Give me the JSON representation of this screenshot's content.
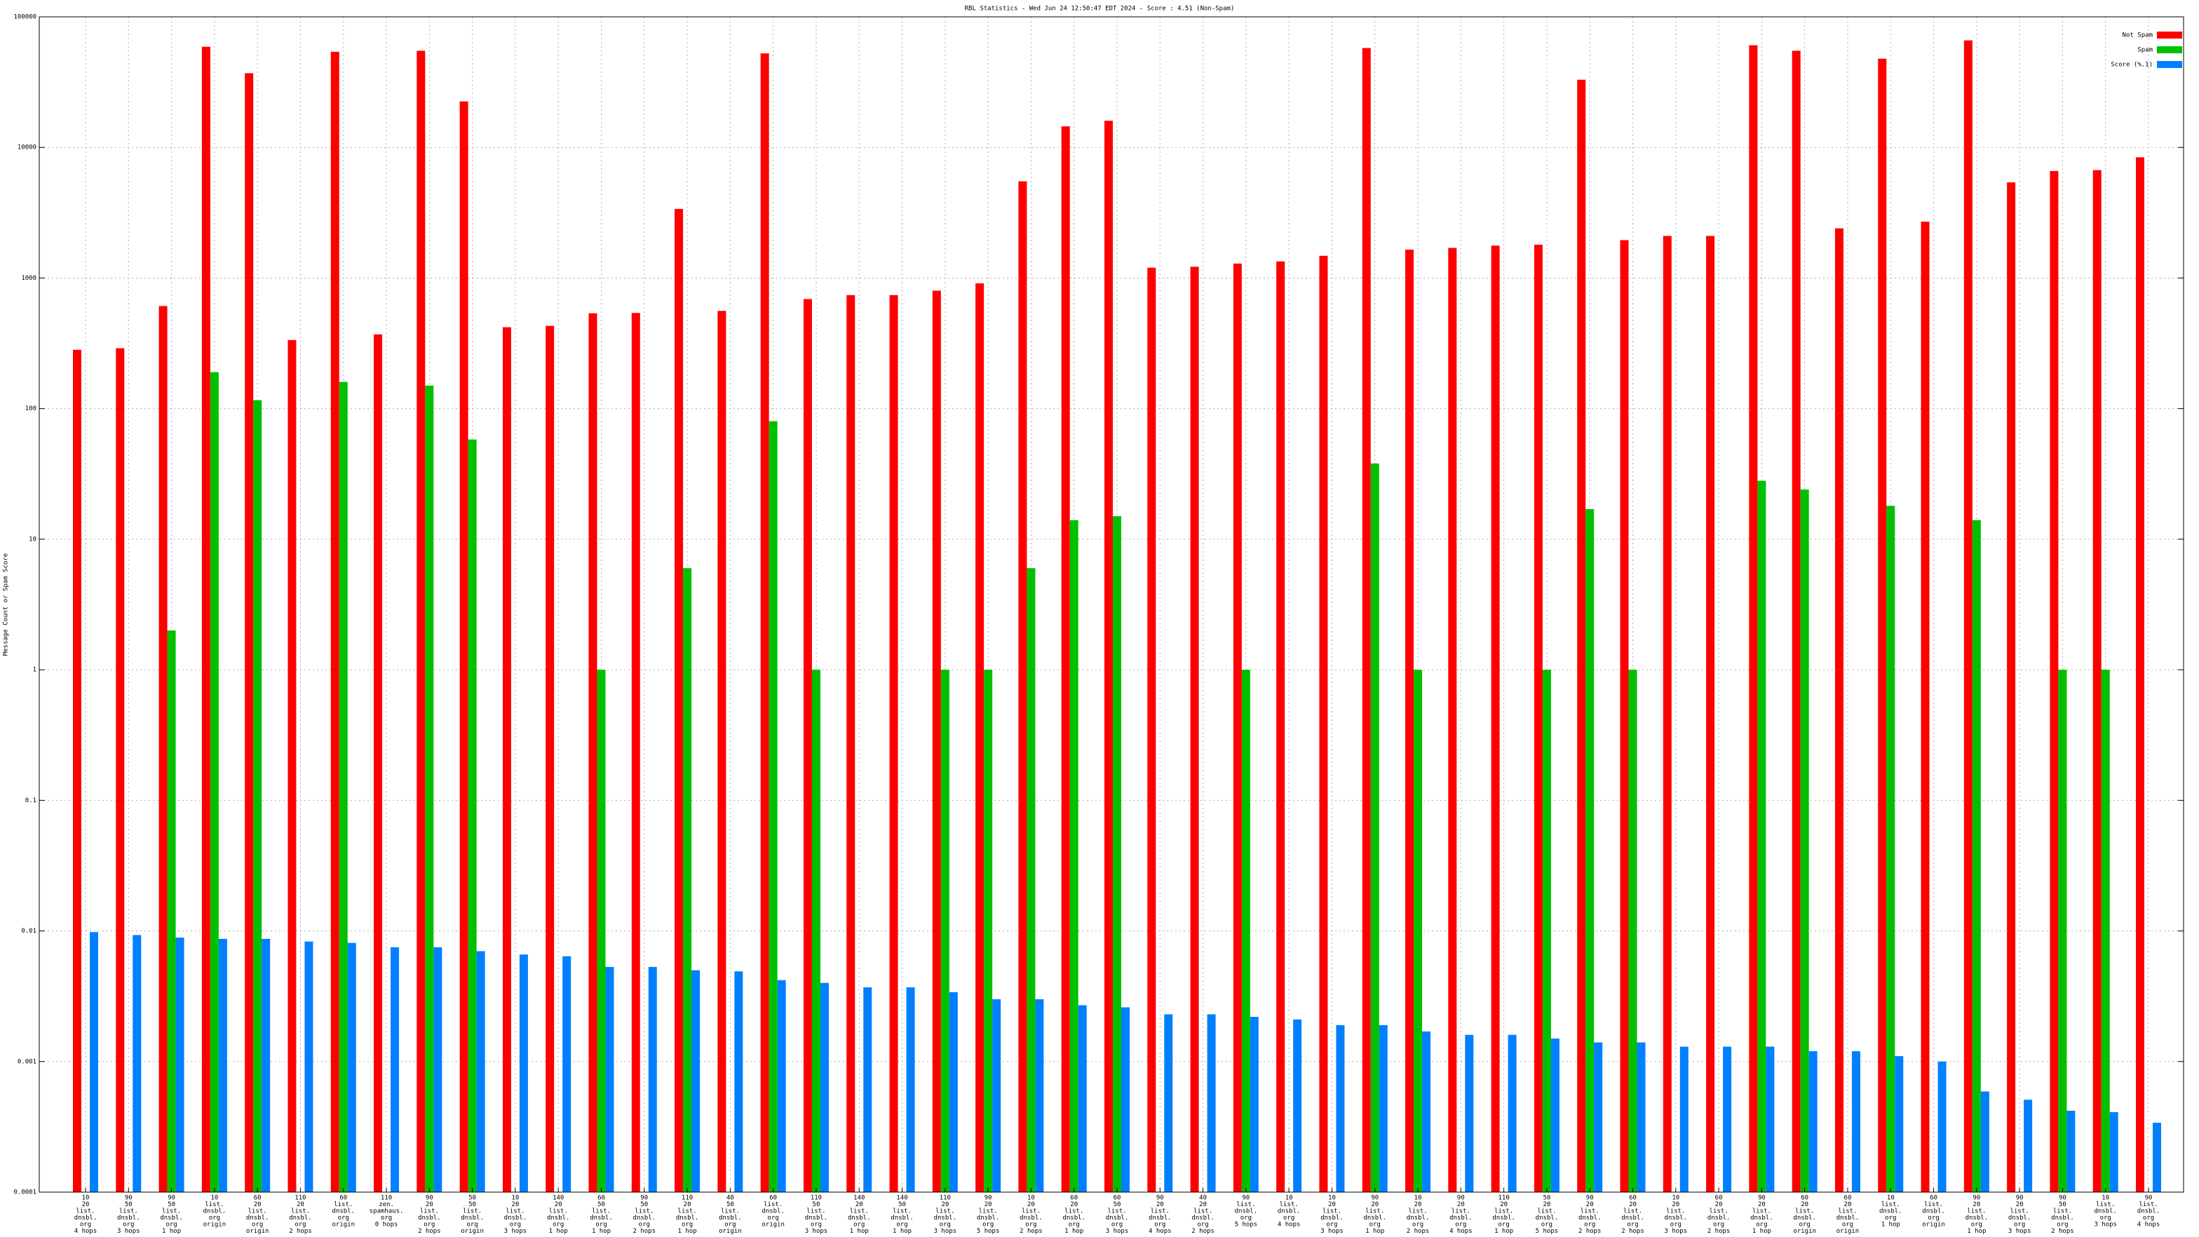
{
  "chart_data": {
    "type": "bar",
    "title": "RBL Statistics - Wed Jun 24 12:50:47 EDT 2024 - Score : 4.51 (Non-Spam)",
    "y_label": "Message Count or Spam Score",
    "log_scale": true,
    "grid": true,
    "legend_corner": "top-right",
    "ylim": [
      0.0001,
      100000
    ],
    "yticks": [
      0.0001,
      0.001,
      0.01,
      0.1,
      1,
      10,
      100,
      1000,
      10000,
      100000
    ],
    "categories": [
      [
        "10",
        "20",
        "list.",
        "dnsbl.",
        "org",
        "4 hops"
      ],
      [
        "90",
        "50",
        "list.",
        "dnsbl.",
        "org",
        "3 hops"
      ],
      [
        "90",
        "50",
        "list.",
        "dnsbl.",
        "org",
        "1 hop"
      ],
      [
        "10",
        "list.",
        "dnsbl.",
        "org",
        "origin"
      ],
      [
        "60",
        "20",
        "list.",
        "dnsbl.",
        "org",
        "origin"
      ],
      [
        "110",
        "20",
        "list.",
        "dnsbl.",
        "org",
        "2 hops"
      ],
      [
        "60",
        "list.",
        "dnsbl.",
        "org",
        "origin"
      ],
      [
        "110",
        "zen.",
        "spamhaus.",
        "org",
        "0 hops"
      ],
      [
        "90",
        "20",
        "list.",
        "dnsbl.",
        "org",
        "2 hops"
      ],
      [
        "50",
        "50",
        "list.",
        "dnsbl.",
        "org",
        "origin"
      ],
      [
        "10",
        "20",
        "list.",
        "dnsbl.",
        "org",
        "3 hops"
      ],
      [
        "140",
        "20",
        "list.",
        "dnsbl.",
        "org",
        "1 hop"
      ],
      [
        "60",
        "50",
        "list.",
        "dnsbl.",
        "org",
        "1 hop"
      ],
      [
        "90",
        "50",
        "list.",
        "dnsbl.",
        "org",
        "2 hops"
      ],
      [
        "110",
        "20",
        "list.",
        "dnsbl.",
        "org",
        "1 hop"
      ],
      [
        "40",
        "50",
        "list.",
        "dnsbl.",
        "org",
        "origin"
      ],
      [
        "60",
        "list.",
        "dnsbl.",
        "org",
        "origin"
      ],
      [
        "110",
        "50",
        "list.",
        "dnsbl.",
        "org",
        "3 hops"
      ],
      [
        "140",
        "20",
        "list.",
        "dnsbl.",
        "org",
        "1 hop"
      ],
      [
        "140",
        "50",
        "list.",
        "dnsbl.",
        "org",
        "1 hop"
      ],
      [
        "110",
        "20",
        "list.",
        "dnsbl.",
        "org",
        "3 hops"
      ],
      [
        "90",
        "20",
        "list.",
        "dnsbl.",
        "org",
        "5 hops"
      ],
      [
        "10",
        "20",
        "list.",
        "dnsbl.",
        "org",
        "2 hops"
      ],
      [
        "60",
        "20",
        "list.",
        "dnsbl.",
        "org",
        "1 hop"
      ],
      [
        "60",
        "50",
        "list.",
        "dnsbl.",
        "org",
        "3 hops"
      ],
      [
        "90",
        "20",
        "list.",
        "dnsbl.",
        "org",
        "4 hops"
      ],
      [
        "40",
        "20",
        "list.",
        "dnsbl.",
        "org",
        "2 hops"
      ],
      [
        "90",
        "list.",
        "dnsbl.",
        "org",
        "5 hops"
      ],
      [
        "10",
        "list.",
        "dnsbl.",
        "org",
        "4 hops"
      ],
      [
        "10",
        "20",
        "list.",
        "dnsbl.",
        "org",
        "3 hops"
      ],
      [
        "90",
        "20",
        "list.",
        "dnsbl.",
        "org",
        "1 hop"
      ],
      [
        "10",
        "20",
        "list.",
        "dnsbl.",
        "org",
        "2 hops"
      ],
      [
        "90",
        "20",
        "list.",
        "dnsbl.",
        "org",
        "4 hops"
      ],
      [
        "110",
        "20",
        "list.",
        "dnsbl.",
        "org",
        "1 hop"
      ],
      [
        "50",
        "20",
        "list.",
        "dnsbl.",
        "org",
        "5 hops"
      ],
      [
        "90",
        "20",
        "list.",
        "dnsbl.",
        "org",
        "2 hops"
      ],
      [
        "60",
        "20",
        "list.",
        "dnsbl.",
        "org",
        "2 hops"
      ],
      [
        "10",
        "20",
        "list.",
        "dnsbl.",
        "org",
        "3 hops"
      ],
      [
        "60",
        "20",
        "list.",
        "dnsbl.",
        "org",
        "2 hops"
      ],
      [
        "90",
        "20",
        "list.",
        "dnsbl.",
        "org",
        "1 hop"
      ],
      [
        "60",
        "20",
        "list.",
        "dnsbl.",
        "org",
        "origin"
      ],
      [
        "60",
        "20",
        "list.",
        "dnsbl.",
        "org",
        "origin"
      ],
      [
        "10",
        "list.",
        "dnsbl.",
        "org",
        "1 hop"
      ],
      [
        "60",
        "list.",
        "dnsbl.",
        "org",
        "origin"
      ],
      [
        "90",
        "20",
        "list.",
        "dnsbl.",
        "org",
        "1 hop"
      ],
      [
        "90",
        "20",
        "list.",
        "dnsbl.",
        "org",
        "3 hops"
      ],
      [
        "90",
        "50",
        "list.",
        "dnsbl.",
        "org",
        "2 hops"
      ],
      [
        "10",
        "list.",
        "dnsbl.",
        "org",
        "3 hops"
      ],
      [
        "90",
        "list.",
        "dnsbl.",
        "org",
        "4 hops"
      ]
    ],
    "series": [
      {
        "name": "Not Spam",
        "color": "#ff0000",
        "values": [
          282,
          290,
          610,
          59000,
          37000,
          335,
          54000,
          370,
          55000,
          22500,
          420,
          430,
          537,
          540,
          3380,
          560,
          52500,
          690,
          740,
          740,
          800,
          910,
          5500,
          14500,
          16000,
          1200,
          1220,
          1290,
          1340,
          1480,
          57700,
          1650,
          1700,
          1770,
          1800,
          33000,
          1950,
          2100,
          2100,
          60600,
          55000,
          2400,
          47800,
          2700,
          66000,
          5400,
          6600,
          6700,
          8400
        ]
      },
      {
        "name": "Spam",
        "color": "#00c000",
        "values": [
          null,
          null,
          2,
          190,
          116,
          null,
          160,
          null,
          150,
          58,
          null,
          null,
          1,
          null,
          6,
          null,
          80,
          1,
          null,
          null,
          1,
          1,
          6,
          14,
          15,
          null,
          null,
          1,
          null,
          null,
          38,
          1,
          null,
          null,
          1,
          17,
          1,
          null,
          null,
          28,
          24,
          null,
          18,
          null,
          14,
          null,
          1,
          1,
          null
        ]
      },
      {
        "name": "Score (%.1)",
        "color": "#0080ff",
        "values": [
          0.0098,
          0.0093,
          0.0089,
          0.0087,
          0.0087,
          0.0083,
          0.0081,
          0.0075,
          0.0075,
          0.007,
          0.0066,
          0.0064,
          0.0053,
          0.0053,
          0.005,
          0.0049,
          0.0042,
          0.004,
          0.0037,
          0.0037,
          0.0034,
          0.003,
          0.003,
          0.0027,
          0.0026,
          0.0023,
          0.0023,
          0.0022,
          0.0021,
          0.0019,
          0.0019,
          0.0017,
          0.0016,
          0.0016,
          0.0015,
          0.0014,
          0.0014,
          0.0013,
          0.0013,
          0.0013,
          0.0012,
          0.0012,
          0.0011,
          0.001,
          0.00059,
          0.00051,
          0.00042,
          0.00041,
          0.00034
        ]
      }
    ]
  }
}
